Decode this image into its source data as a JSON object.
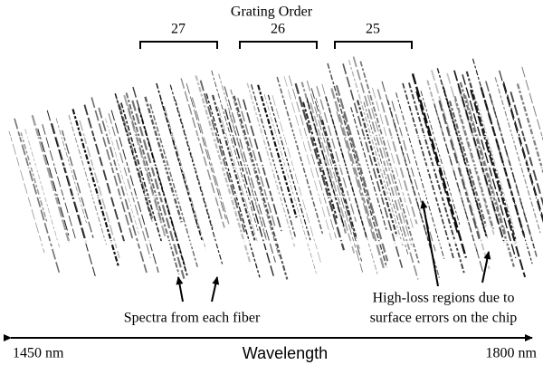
{
  "title": "Grating Order",
  "orders": [
    "27",
    "26",
    "25"
  ],
  "annotations": {
    "fibers": "Spectra from each fiber",
    "loss": [
      "High-loss regions due to",
      "surface errors on the chip"
    ]
  },
  "axis": {
    "start": "1450 nm",
    "label": "Wavelength",
    "end": "1800 nm"
  }
}
